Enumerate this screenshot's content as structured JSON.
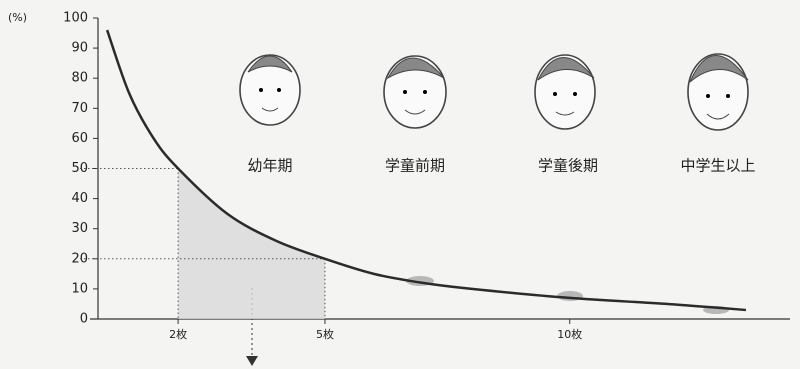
{
  "chart_data": {
    "type": "line",
    "y_unit": "(%)",
    "x": [
      0.55,
      1,
      1.5,
      2,
      3,
      4,
      5,
      6,
      7,
      8,
      10,
      12,
      13.6
    ],
    "values": [
      96,
      75,
      60,
      50,
      35,
      26,
      20,
      15,
      12,
      10,
      7,
      5,
      3
    ],
    "color": "#2b2b2b",
    "xlim": [
      0.2,
      14.5
    ],
    "ylim": [
      0,
      100
    ],
    "xticks": [
      {
        "value": 2,
        "label": "2枚"
      },
      {
        "value": 5,
        "label": "5枚"
      },
      {
        "value": 10,
        "label": "10枚"
      }
    ],
    "yticks": [
      0,
      10,
      20,
      30,
      40,
      50,
      60,
      70,
      80,
      90,
      100
    ],
    "reference_points": [
      {
        "x": 2,
        "y": 50
      },
      {
        "x": 5,
        "y": 20
      }
    ],
    "stage_labels": [
      "幼年期",
      "学童前期",
      "学童後期",
      "中学生以上"
    ]
  }
}
